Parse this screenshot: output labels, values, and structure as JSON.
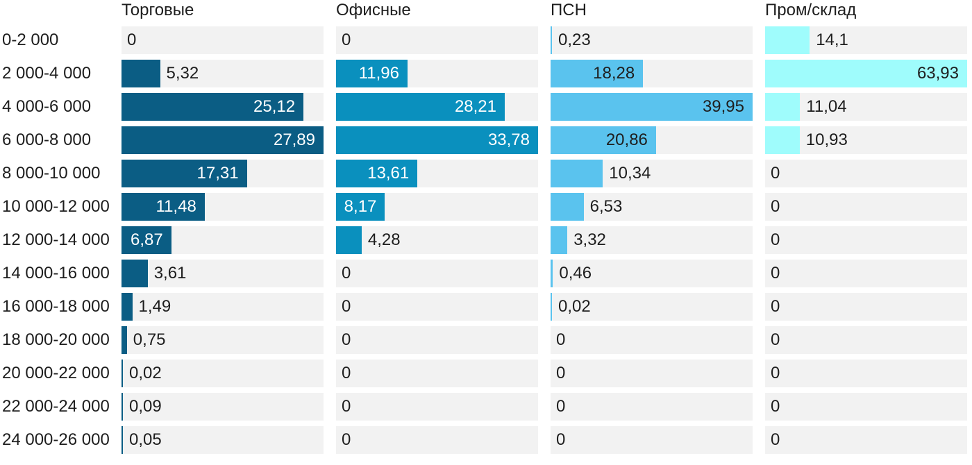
{
  "chart_data": {
    "type": "bar",
    "orientation": "horizontal",
    "title": "",
    "categories": [
      "0-2 000",
      "2 000-4 000",
      "4 000-6 000",
      "6 000-8 000",
      "8 000-10 000",
      "10 000-12 000",
      "12 000-14 000",
      "14 000-16 000",
      "16 000-18 000",
      "18 000-20 000",
      "20 000-22 000",
      "22 000-24 000",
      "24 000-26 000"
    ],
    "series": [
      {
        "name": "Торговые",
        "color": "#0b5d84",
        "inside_label_color": "#ffffff",
        "values": [
          0,
          5.32,
          25.12,
          27.89,
          17.31,
          11.48,
          6.87,
          3.61,
          1.49,
          0.75,
          0.02,
          0.09,
          0.05
        ],
        "labels": [
          "0",
          "5,32",
          "25,12",
          "27,89",
          "17,31",
          "11,48",
          "6,87",
          "3,61",
          "1,49",
          "0,75",
          "0,02",
          "0,09",
          "0,05"
        ]
      },
      {
        "name": "Офисные",
        "color": "#0a90be",
        "inside_label_color": "#ffffff",
        "values": [
          0,
          11.96,
          28.21,
          33.78,
          13.61,
          8.17,
          4.28,
          0,
          0,
          0,
          0,
          0,
          0
        ],
        "labels": [
          "0",
          "11,96",
          "28,21",
          "33,78",
          "13,61",
          "8,17",
          "4,28",
          "0",
          "0",
          "0",
          "0",
          "0",
          "0"
        ]
      },
      {
        "name": "ПСН",
        "color": "#5ac3ee",
        "inside_label_color": "#1e1e1e",
        "values": [
          0.23,
          18.28,
          39.95,
          20.86,
          10.34,
          6.53,
          3.32,
          0.46,
          0.02,
          0,
          0,
          0,
          0
        ],
        "labels": [
          "0,23",
          "18,28",
          "39,95",
          "20,86",
          "10,34",
          "6,53",
          "3,32",
          "0,46",
          "0,02",
          "0",
          "0",
          "0",
          "0"
        ]
      },
      {
        "name": "Пром/склад",
        "color": "#9ffcfc",
        "inside_label_color": "#1e1e1e",
        "values": [
          14.1,
          63.93,
          11.04,
          10.93,
          0,
          0,
          0,
          0,
          0,
          0,
          0,
          0,
          0
        ],
        "labels": [
          "14,1",
          "63,93",
          "11,04",
          "10,93",
          "0",
          "0",
          "0",
          "0",
          "0",
          "0",
          "0",
          "0",
          "0"
        ]
      }
    ],
    "layout_hints": {
      "bar_scale": "per_column_max_fills_track",
      "track_color": "#f2f2f2",
      "text_color": "#1e1e1e",
      "value_decimal_separator": ",",
      "legend_position": "column_headers_top",
      "grid": "off"
    }
  }
}
